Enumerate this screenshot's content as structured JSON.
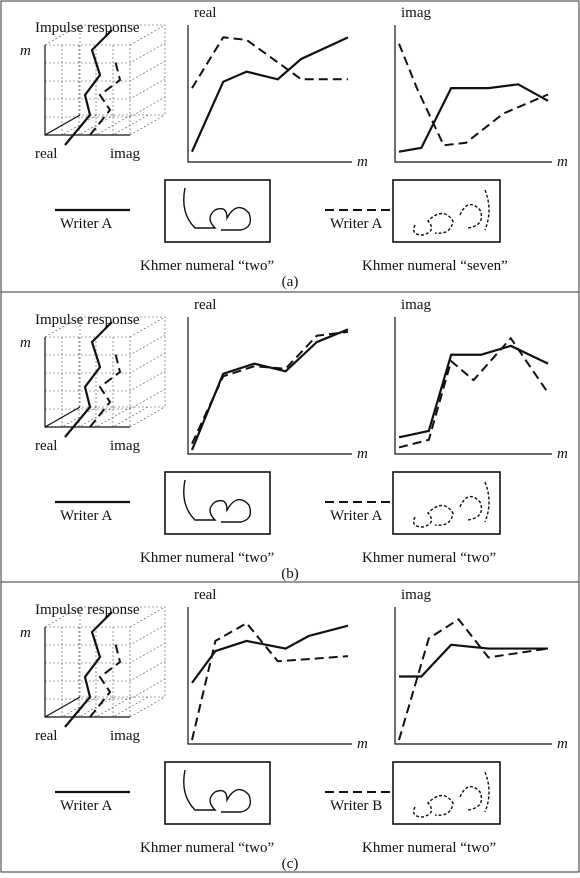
{
  "panels": [
    {
      "title": "Impulse response",
      "axis_m": "m",
      "axis_real": "real",
      "axis_imag": "imag",
      "real_label": "real",
      "real_m": "m",
      "imag_label": "imag",
      "imag_m": "m",
      "legend1": "Writer A",
      "caption1": "Khmer numeral “two”",
      "legend2": "Writer A",
      "caption2": "Khmer numeral “seven”",
      "label": "(a)"
    },
    {
      "title": "Impulse response",
      "axis_m": "m",
      "axis_real": "real",
      "axis_imag": "imag",
      "real_label": "real",
      "real_m": "m",
      "imag_label": "imag",
      "imag_m": "m",
      "legend1": "Writer A",
      "caption1": "Khmer numeral “two”",
      "legend2": "Writer A",
      "caption2": "Khmer numeral “two”",
      "label": "(b)"
    },
    {
      "title": "Impulse response",
      "axis_m": "m",
      "axis_real": "real",
      "axis_imag": "imag",
      "real_label": "real",
      "real_m": "m",
      "imag_label": "imag",
      "imag_m": "m",
      "legend1": "Writer A",
      "caption1": "Khmer numeral “two”",
      "legend2": "Writer B",
      "caption2": "Khmer numeral “two”",
      "label": "(c)"
    }
  ]
}
